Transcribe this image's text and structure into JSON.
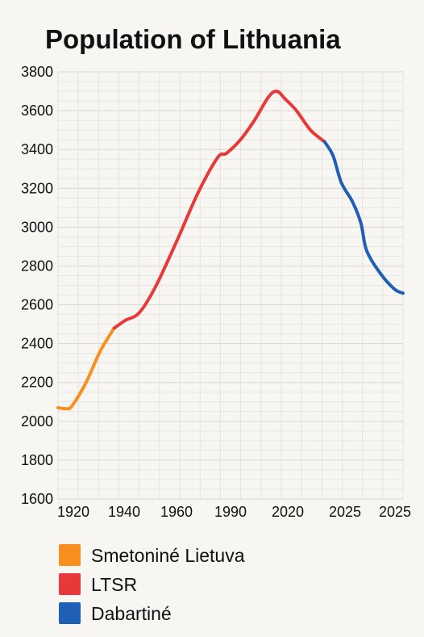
{
  "chart_data": {
    "type": "line",
    "title": "Population of Lithuania",
    "xlabel": "",
    "ylabel": "",
    "ylim": [
      1600,
      3800
    ],
    "y_ticks": [
      1600,
      1800,
      2000,
      2200,
      2400,
      2600,
      2800,
      3000,
      3200,
      3400,
      3600,
      3800
    ],
    "x_ticks": [
      "1920",
      "1940",
      "1960",
      "1990",
      "2020",
      "2025",
      "2025"
    ],
    "grid": true,
    "legend_position": "bottom-left",
    "series": [
      {
        "name": "Smetoniné Lietuva",
        "color": "#f7901e",
        "points": [
          [
            1915,
            2070
          ],
          [
            1918,
            2065
          ],
          [
            1920,
            2080
          ],
          [
            1925,
            2200
          ],
          [
            1930,
            2360
          ],
          [
            1935,
            2480
          ]
        ]
      },
      {
        "name": "LTSR",
        "color": "#e8393a",
        "points": [
          [
            1935,
            2480
          ],
          [
            1939,
            2520
          ],
          [
            1944,
            2560
          ],
          [
            1950,
            2700
          ],
          [
            1958,
            2950
          ],
          [
            1965,
            3180
          ],
          [
            1972,
            3360
          ],
          [
            1975,
            3380
          ],
          [
            1980,
            3450
          ],
          [
            1985,
            3550
          ],
          [
            1990,
            3670
          ],
          [
            1993,
            3700
          ],
          [
            1996,
            3660
          ],
          [
            2000,
            3600
          ],
          [
            2005,
            3500
          ],
          [
            2010,
            3440
          ]
        ]
      },
      {
        "name": "Dabartiné",
        "color": "#1f5fb5",
        "points": [
          [
            2010,
            3440
          ],
          [
            2013,
            3370
          ],
          [
            2016,
            3230
          ],
          [
            2020,
            3130
          ],
          [
            2023,
            3020
          ],
          [
            2025,
            2880
          ],
          [
            2030,
            2760
          ],
          [
            2035,
            2680
          ],
          [
            2038,
            2660
          ]
        ]
      }
    ]
  }
}
